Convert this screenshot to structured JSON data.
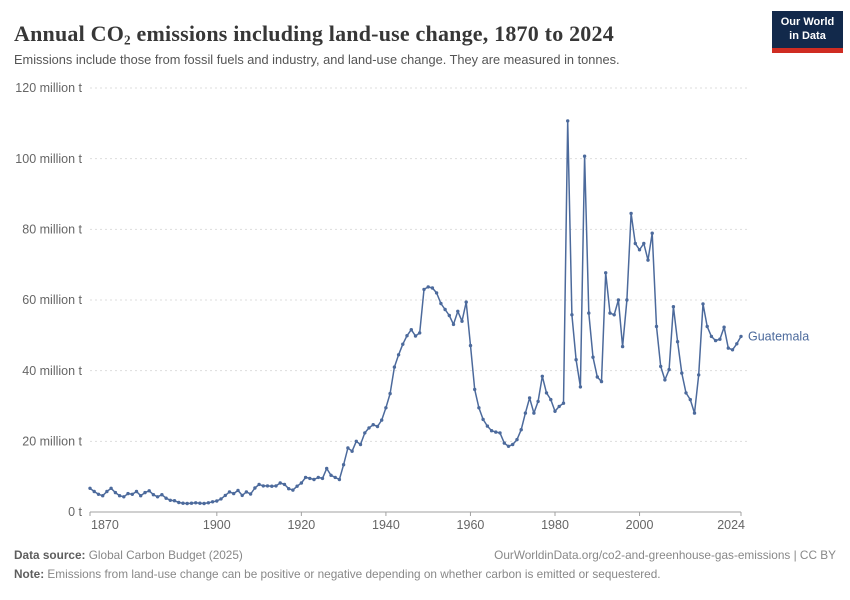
{
  "header": {
    "title_pre": "Annual CO",
    "title_sub": "2",
    "title_post": " emissions including land-use change, 1870 to 2024",
    "subtitle": "Emissions include those from fossil fuels and industry, and land-use change. They are measured in tonnes.",
    "logo": {
      "line1": "Our World",
      "line2": "in Data",
      "bg_color": "#12294B",
      "bar_color": "#CF2C22"
    }
  },
  "chart_data": {
    "type": "line",
    "title": "Annual CO₂ emissions including land-use change, 1870 to 2024",
    "entity": "Guatemala",
    "unit": "million t",
    "line_color": "#4C6A9C",
    "grid": true,
    "legend_position": "end-of-line-label",
    "ylim_million_t": [
      0,
      120
    ],
    "yticks_million_t": [
      0,
      20,
      40,
      60,
      80,
      100,
      120
    ],
    "ytick_labels": [
      "0 t",
      "20 million t",
      "40 million t",
      "60 million t",
      "80 million t",
      "100 million t",
      "120 million t"
    ],
    "xticks": [
      1870,
      1900,
      1920,
      1940,
      1960,
      1980,
      2000,
      2024
    ],
    "x_start": 1870,
    "x_end": 2024,
    "values_million_t": [
      6.7,
      5.8,
      5.0,
      4.6,
      5.8,
      6.7,
      5.5,
      4.6,
      4.3,
      5.2,
      5.0,
      5.8,
      4.6,
      5.5,
      6.0,
      4.9,
      4.3,
      4.9,
      3.9,
      3.3,
      3.2,
      2.7,
      2.5,
      2.4,
      2.5,
      2.6,
      2.5,
      2.4,
      2.6,
      2.9,
      3.1,
      3.7,
      4.7,
      5.7,
      5.2,
      6.1,
      4.7,
      5.7,
      5.1,
      6.8,
      7.8,
      7.4,
      7.4,
      7.3,
      7.4,
      8.2,
      7.8,
      6.6,
      6.2,
      7.3,
      8.2,
      9.8,
      9.5,
      9.2,
      9.8,
      9.5,
      12.3,
      10.4,
      9.8,
      9.2,
      13.4,
      18.1,
      17.2,
      20.0,
      19.1,
      22.4,
      23.8,
      24.7,
      24.2,
      26.0,
      29.5,
      33.5,
      41.0,
      44.5,
      47.5,
      49.9,
      51.6,
      49.8,
      50.7,
      63.0,
      63.7,
      63.4,
      62.0,
      59.0,
      57.3,
      55.6,
      53.1,
      56.8,
      54.0,
      59.4,
      47.1,
      34.7,
      29.5,
      26.2,
      24.3,
      23.0,
      22.6,
      22.4,
      19.5,
      18.6,
      19.1,
      20.5,
      23.3,
      28.0,
      32.3,
      28.0,
      31.3,
      38.4,
      33.7,
      31.8,
      28.5,
      29.9,
      30.8,
      110.7,
      55.8,
      43.1,
      35.4,
      100.7,
      56.3,
      43.8,
      38.2,
      36.9,
      67.7,
      56.3,
      55.8,
      60.0,
      46.8,
      60.0,
      84.5,
      76.0,
      74.2,
      76.0,
      71.3,
      78.9,
      52.5,
      41.2,
      37.4,
      40.3,
      58.1,
      48.2,
      39.3,
      33.7,
      31.8,
      28.0,
      38.8,
      58.9,
      52.5,
      49.7,
      48.5,
      48.9,
      52.3,
      46.4,
      45.9,
      47.6,
      49.7
    ]
  },
  "footer": {
    "source_label": "Data source:",
    "source_text": " Global Carbon Budget (2025)",
    "credit_text": "OurWorldinData.org/co2-and-greenhouse-gas-emissions | CC BY",
    "note_label": "Note:",
    "note_text": " Emissions from land-use change can be positive or negative depending on whether carbon is emitted or sequestered."
  },
  "colors": {
    "series": "#4C6A9C",
    "gridline": "#dddddd",
    "axis": "#a1a1a1",
    "tick_label": "#666666",
    "title": "#373737",
    "subtitle": "#555555",
    "footer": "#888888"
  }
}
